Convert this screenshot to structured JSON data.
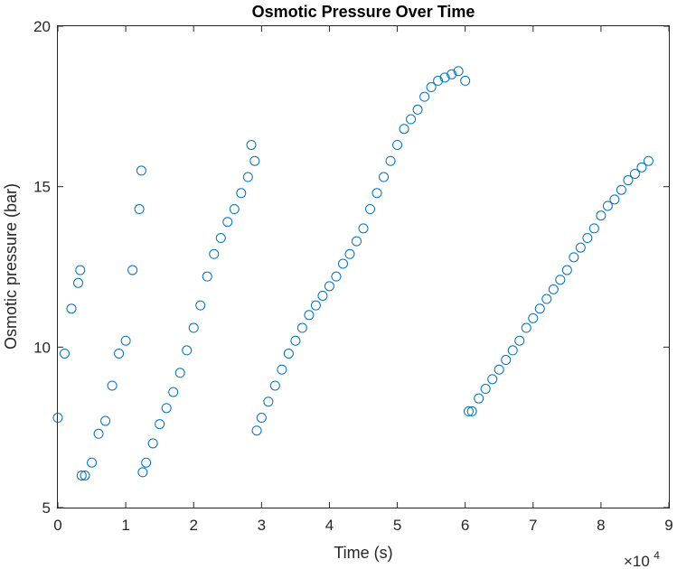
{
  "chart_data": {
    "type": "scatter",
    "title": "Osmotic Pressure Over Time",
    "xlabel": "Time (s)",
    "ylabel": "Osmotic pressure (bar)",
    "xlim": [
      0,
      90000
    ],
    "ylim": [
      5,
      20
    ],
    "xticks": [
      0,
      10000,
      20000,
      30000,
      40000,
      50000,
      60000,
      70000,
      80000,
      90000
    ],
    "xtick_labels": [
      "0",
      "1",
      "2",
      "3",
      "4",
      "5",
      "6",
      "7",
      "8",
      "9"
    ],
    "yticks": [
      5,
      10,
      15,
      20
    ],
    "ytick_labels": [
      "5",
      "10",
      "15",
      "20"
    ],
    "x_exponent_base": "×10",
    "x_exponent_power": "4",
    "marker": "circle-open",
    "color": "#0072BD",
    "grid": false,
    "legend": "none",
    "series": [
      {
        "x": [
          0,
          1000,
          2000,
          3000,
          3300,
          3500,
          4000,
          5000,
          6000,
          7000,
          8000,
          9000,
          10000,
          11000,
          12000,
          12300,
          12500,
          13000,
          14000,
          15000,
          16000,
          17000,
          18000,
          19000,
          20000,
          21000,
          22000,
          23000,
          24000,
          25000,
          26000,
          27000,
          28000,
          28500,
          29000,
          29300,
          30000,
          31000,
          32000,
          33000,
          34000,
          35000,
          36000,
          37000,
          38000,
          39000,
          40000,
          41000,
          42000,
          43000,
          44000,
          45000,
          46000,
          47000,
          48000,
          49000,
          50000,
          51000,
          52000,
          53000,
          54000,
          55000,
          56000,
          57000,
          58000,
          59000,
          60000,
          60500,
          61000,
          62000,
          63000,
          64000,
          65000,
          66000,
          67000,
          68000,
          69000,
          70000,
          71000,
          72000,
          73000,
          74000,
          75000,
          76000,
          77000,
          78000,
          79000,
          80000,
          81000,
          82000,
          83000,
          84000,
          85000,
          86000,
          87000
        ],
        "y": [
          7.8,
          9.8,
          11.2,
          12.0,
          12.4,
          6.0,
          6.0,
          6.4,
          7.3,
          7.7,
          8.8,
          9.8,
          10.2,
          12.4,
          14.3,
          15.5,
          6.1,
          6.4,
          7.0,
          7.6,
          8.1,
          8.6,
          9.2,
          9.9,
          10.6,
          11.3,
          12.2,
          12.9,
          13.4,
          13.9,
          14.3,
          14.8,
          15.3,
          16.3,
          15.8,
          7.4,
          7.8,
          8.3,
          8.8,
          9.3,
          9.8,
          10.2,
          10.6,
          11.0,
          11.3,
          11.6,
          11.9,
          12.2,
          12.6,
          12.9,
          13.3,
          13.7,
          14.3,
          14.8,
          15.3,
          15.8,
          16.3,
          16.8,
          17.1,
          17.4,
          17.8,
          18.1,
          18.3,
          18.4,
          18.5,
          18.6,
          18.3,
          8.0,
          8.0,
          8.4,
          8.7,
          9.0,
          9.3,
          9.6,
          9.9,
          10.2,
          10.6,
          10.9,
          11.2,
          11.5,
          11.8,
          12.1,
          12.4,
          12.8,
          13.1,
          13.4,
          13.7,
          14.1,
          14.4,
          14.6,
          14.9,
          15.2,
          15.4,
          15.6,
          15.8
        ]
      }
    ]
  }
}
